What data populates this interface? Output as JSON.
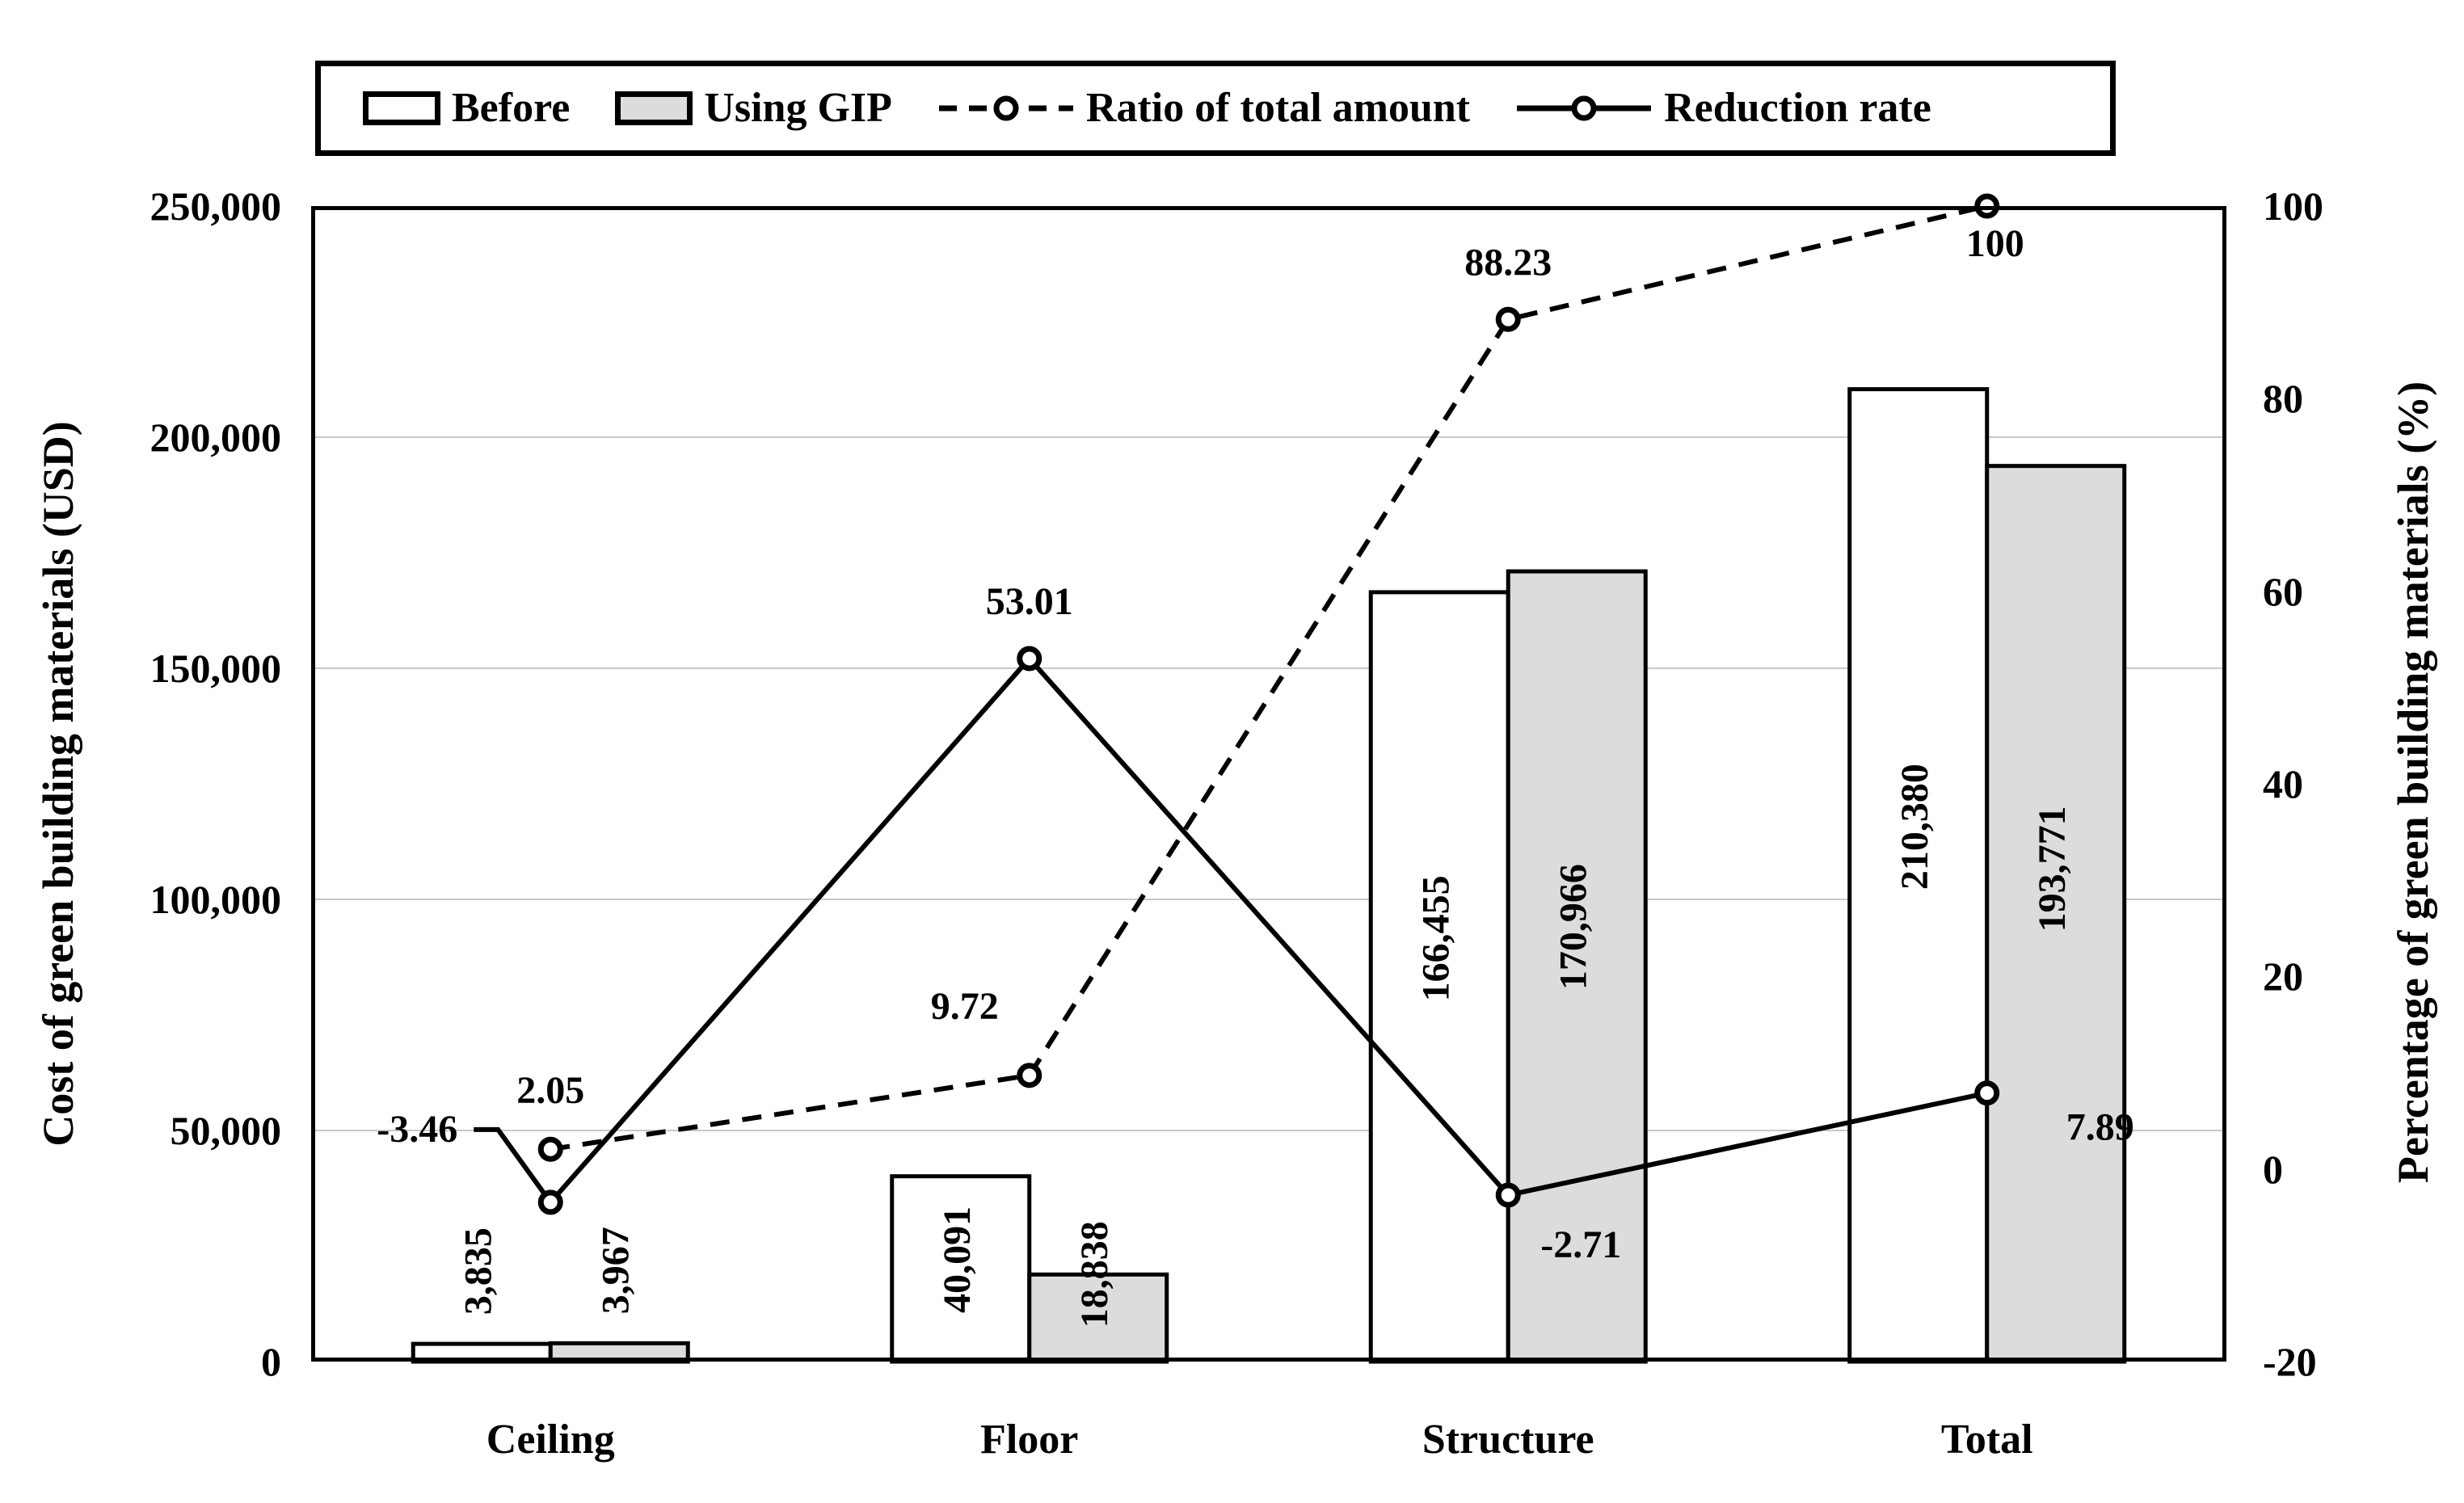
{
  "legend": {
    "items": [
      {
        "label": "Before"
      },
      {
        "label": "Using GIP"
      },
      {
        "label": "Ratio of total amount"
      },
      {
        "label": "Reduction rate"
      }
    ]
  },
  "chart_data": {
    "type": "bar+line combo",
    "categories": [
      "Ceiling",
      "Floor",
      "Structure",
      "Total"
    ],
    "series": [
      {
        "name": "Before",
        "type": "bar",
        "axis": "left",
        "fill": "#ffffff",
        "values": [
          3835,
          40091,
          166455,
          210380
        ],
        "labels": [
          "3,835",
          "40,091",
          "166,455",
          "210,380"
        ]
      },
      {
        "name": "Using GIP",
        "type": "bar",
        "axis": "left",
        "fill": "#dcdcdc",
        "values": [
          3967,
          18838,
          170966,
          193771
        ],
        "labels": [
          "3,967",
          "18,838",
          "170,966",
          "193,771"
        ]
      },
      {
        "name": "Ratio of total amount",
        "type": "line",
        "line_style": "dashed",
        "axis": "right",
        "values": [
          2.05,
          9.72,
          88.23,
          100
        ],
        "labels": [
          "2.05",
          "9.72",
          "88.23",
          "100"
        ]
      },
      {
        "name": "Reduction rate",
        "type": "line",
        "line_style": "solid",
        "axis": "right",
        "values": [
          -3.46,
          53.01,
          -2.71,
          7.89
        ],
        "labels": [
          "-3.46",
          "53.01",
          "-2.71",
          "7.89"
        ]
      }
    ],
    "axes": {
      "left": {
        "title": "Cost of green building materials (USD)",
        "ticks": [
          "0",
          "50,000",
          "100,000",
          "150,000",
          "200,000",
          "250,000"
        ],
        "tick_values": [
          0,
          50000,
          100000,
          150000,
          200000,
          250000
        ],
        "range": [
          0,
          250000
        ]
      },
      "right": {
        "title": "Percentage of green building materials (%)",
        "ticks": [
          "-20",
          "0",
          "20",
          "40",
          "60",
          "80",
          "100"
        ],
        "tick_values": [
          -20,
          0,
          20,
          40,
          60,
          80,
          100
        ],
        "range": [
          -20,
          100
        ]
      }
    },
    "grid": {
      "horizontal": true,
      "color": "#c9c9c9"
    },
    "colors": {
      "line": "#000000",
      "border": "#000000",
      "marker_fill": "#ffffff"
    }
  }
}
